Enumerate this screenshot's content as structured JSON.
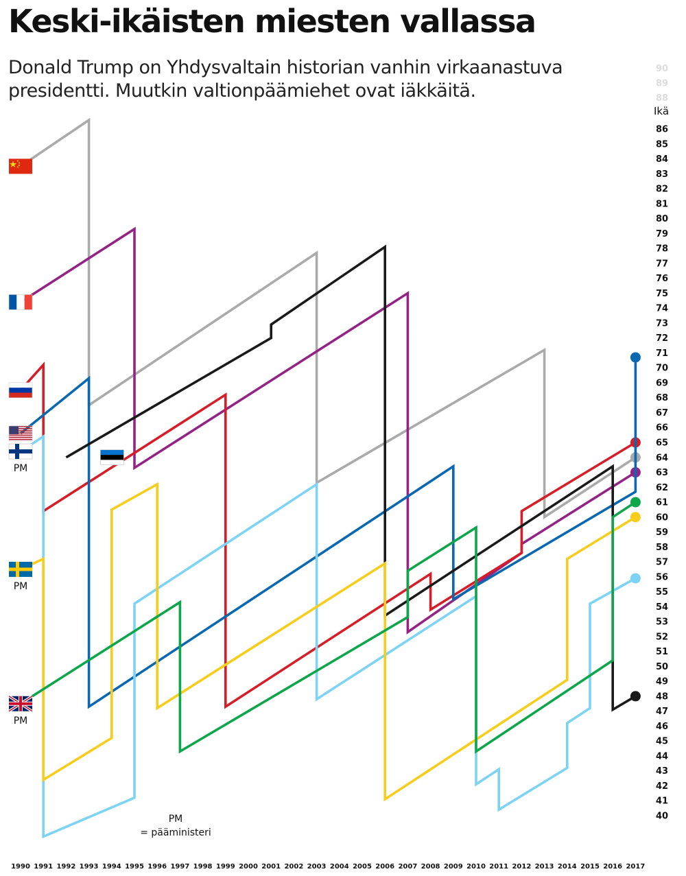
{
  "chart_data": {
    "type": "line",
    "title": "Keski-ikäisten miesten vallassa",
    "subtitle": "Donald Trump on Yhdysvaltain historian vanhin virkaanastuva presidentti. Muutkin valtionpäämiehet ovat iäkkäitä.",
    "ylabel": "Ikä",
    "xlabel": "",
    "ylim": [
      40,
      86
    ],
    "yticks": [
      86,
      85,
      84,
      83,
      82,
      81,
      80,
      79,
      78,
      77,
      76,
      75,
      74,
      73,
      72,
      71,
      70,
      69,
      68,
      67,
      66,
      65,
      64,
      63,
      62,
      61,
      60,
      59,
      58,
      57,
      56,
      55,
      54,
      53,
      52,
      51,
      50,
      49,
      48,
      47,
      46,
      45,
      44,
      43,
      42,
      41,
      40
    ],
    "faded_yticks": [
      "90",
      "89",
      "88"
    ],
    "xlim": [
      1990,
      2017
    ],
    "x": [
      1990,
      1991,
      1992,
      1993,
      1994,
      1995,
      1996,
      1997,
      1998,
      1999,
      2000,
      2001,
      2002,
      2003,
      2004,
      2005,
      2006,
      2007,
      2008,
      2009,
      2010,
      2011,
      2012,
      2013,
      2014,
      2015,
      2016,
      2017
    ],
    "grid": false,
    "annotations": {
      "pm_label": "PM",
      "pm_legend_title": "PM",
      "pm_legend_text": "= pääministeri"
    },
    "series": [
      {
        "flag": "china",
        "color": "#aaaaaa",
        "pm": false,
        "points": [
          [
            1990,
            83.5
          ],
          [
            1993,
            86.6
          ],
          [
            1993,
            67.5
          ],
          [
            2003,
            77.7
          ],
          [
            2003,
            62.3
          ],
          [
            2013,
            71.2
          ],
          [
            2013,
            60.0
          ],
          [
            2017,
            64.0
          ]
        ]
      },
      {
        "flag": "france",
        "color": "#932486",
        "pm": false,
        "points": [
          [
            1990,
            74.4
          ],
          [
            1995,
            79.3
          ],
          [
            1995,
            63.3
          ],
          [
            2007,
            75.0
          ],
          [
            2007,
            52.3
          ],
          [
            2012,
            57.6
          ],
          [
            2012,
            58.2
          ],
          [
            2017,
            63.0
          ]
        ]
      },
      {
        "flag": "russia",
        "color": "#d61e28",
        "pm": false,
        "points": [
          [
            1990,
            68.5
          ],
          [
            1991,
            70.2
          ],
          [
            1991,
            60.4
          ],
          [
            1999,
            68.2
          ],
          [
            1999,
            47.3
          ],
          [
            2008,
            56.2
          ],
          [
            2008,
            53.8
          ],
          [
            2012,
            57.6
          ],
          [
            2012,
            60.4
          ],
          [
            2017,
            65.0
          ]
        ]
      },
      {
        "flag": "usa",
        "color": "#0a68b1",
        "pm": false,
        "points": [
          [
            1990,
            65.6
          ],
          [
            1993,
            69.3
          ],
          [
            1993,
            47.3
          ],
          [
            2009,
            63.4
          ],
          [
            2009,
            54.5
          ],
          [
            2017,
            61.7
          ],
          [
            2017,
            70.7
          ]
        ]
      },
      {
        "flag": "finland",
        "color": "#7dd3f3",
        "pm": true,
        "points": [
          [
            1990,
            64.4
          ],
          [
            1991,
            65.4
          ],
          [
            1991,
            38.6
          ],
          [
            1995,
            41.2
          ],
          [
            1995,
            54.2
          ],
          [
            2003,
            62.2
          ],
          [
            2003,
            47.8
          ],
          [
            2010,
            54.7
          ],
          [
            2010,
            42.1
          ],
          [
            2011,
            43.1
          ],
          [
            2011,
            40.4
          ],
          [
            2014,
            43.2
          ],
          [
            2014,
            46.2
          ],
          [
            2015,
            47.2
          ],
          [
            2015,
            54.2
          ],
          [
            2017,
            55.9
          ]
        ]
      },
      {
        "flag": "estonia",
        "color": "#1a1a1a",
        "pm": false,
        "points": [
          [
            1992,
            64.0
          ],
          [
            2001,
            72.0
          ],
          [
            2001,
            72.9
          ],
          [
            2006,
            78.1
          ],
          [
            2006,
            53.4
          ],
          [
            2016,
            63.4
          ],
          [
            2016,
            47.1
          ],
          [
            2017,
            48.0
          ]
        ]
      },
      {
        "flag": "sweden",
        "color": "#f6cd1b",
        "pm": true,
        "points": [
          [
            1990,
            56.5
          ],
          [
            1991,
            57.2
          ],
          [
            1991,
            42.4
          ],
          [
            1994,
            45.2
          ],
          [
            1994,
            60.5
          ],
          [
            1996,
            62.2
          ],
          [
            1996,
            47.2
          ],
          [
            2006,
            56.9
          ],
          [
            2006,
            41.1
          ],
          [
            2014,
            49.1
          ],
          [
            2014,
            57.2
          ],
          [
            2017,
            60.0
          ]
        ]
      },
      {
        "flag": "uk",
        "color": "#0ea64a",
        "pm": true,
        "points": [
          [
            1990,
            47.5
          ],
          [
            1997,
            54.3
          ],
          [
            1997,
            44.3
          ],
          [
            2007,
            53.3
          ],
          [
            2007,
            56.4
          ],
          [
            2010,
            59.3
          ],
          [
            2010,
            44.3
          ],
          [
            2016,
            50.4
          ],
          [
            2016,
            60.0
          ],
          [
            2017,
            61.0
          ]
        ]
      }
    ]
  }
}
